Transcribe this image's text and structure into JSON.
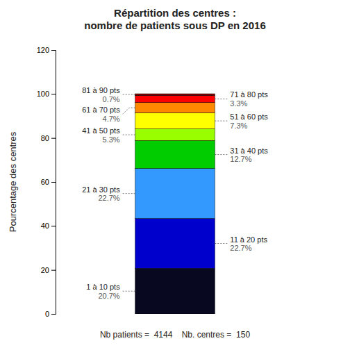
{
  "chart_data": {
    "type": "bar",
    "stacked": true,
    "title": "Répartition des centres :\nnombre de patients sous DP en 2016",
    "ylabel": "Pourcentage des centres",
    "annotations": [
      "Nb patients =  4144    Nb. centres =  150"
    ],
    "categories": [
      null
    ],
    "series": [
      {
        "name": "1 à 10 pts",
        "color": "#080820",
        "values": [
          20.7
        ],
        "value_labels": [
          "20.7%"
        ]
      },
      {
        "name": "11 à 20 pts",
        "color": "#0000CC",
        "values": [
          22.7
        ],
        "value_labels": [
          "22.7%"
        ]
      },
      {
        "name": "21 à 30 pts",
        "color": "#3399FF",
        "values": [
          22.7
        ],
        "value_labels": [
          "22.7%"
        ]
      },
      {
        "name": "31 à 40 pts",
        "color": "#00CC00",
        "values": [
          12.7
        ],
        "value_labels": [
          "12.7%"
        ]
      },
      {
        "name": "41 à 50 pts",
        "color": "#99FF00",
        "values": [
          5.3
        ],
        "value_labels": [
          "5.3%"
        ]
      },
      {
        "name": "51 à 60 pts",
        "color": "#FFFF00",
        "values": [
          7.3
        ],
        "value_labels": [
          "7.3%"
        ]
      },
      {
        "name": "61 à 70 pts",
        "color": "#FF8800",
        "values": [
          4.7
        ],
        "value_labels": [
          "4.7%"
        ]
      },
      {
        "name": "71 à 80 pts",
        "color": "#FF0000",
        "values": [
          3.3
        ],
        "value_labels": [
          "3.3%"
        ]
      },
      {
        "name": "81 à 90 pts",
        "color": "#880000",
        "values": [
          0.7
        ],
        "value_labels": [
          "0.7%"
        ]
      }
    ],
    "ylim": [
      0,
      120
    ],
    "yticks": [
      0,
      20,
      40,
      60,
      80,
      100,
      120
    ],
    "grid": false,
    "data_labels": true
  }
}
